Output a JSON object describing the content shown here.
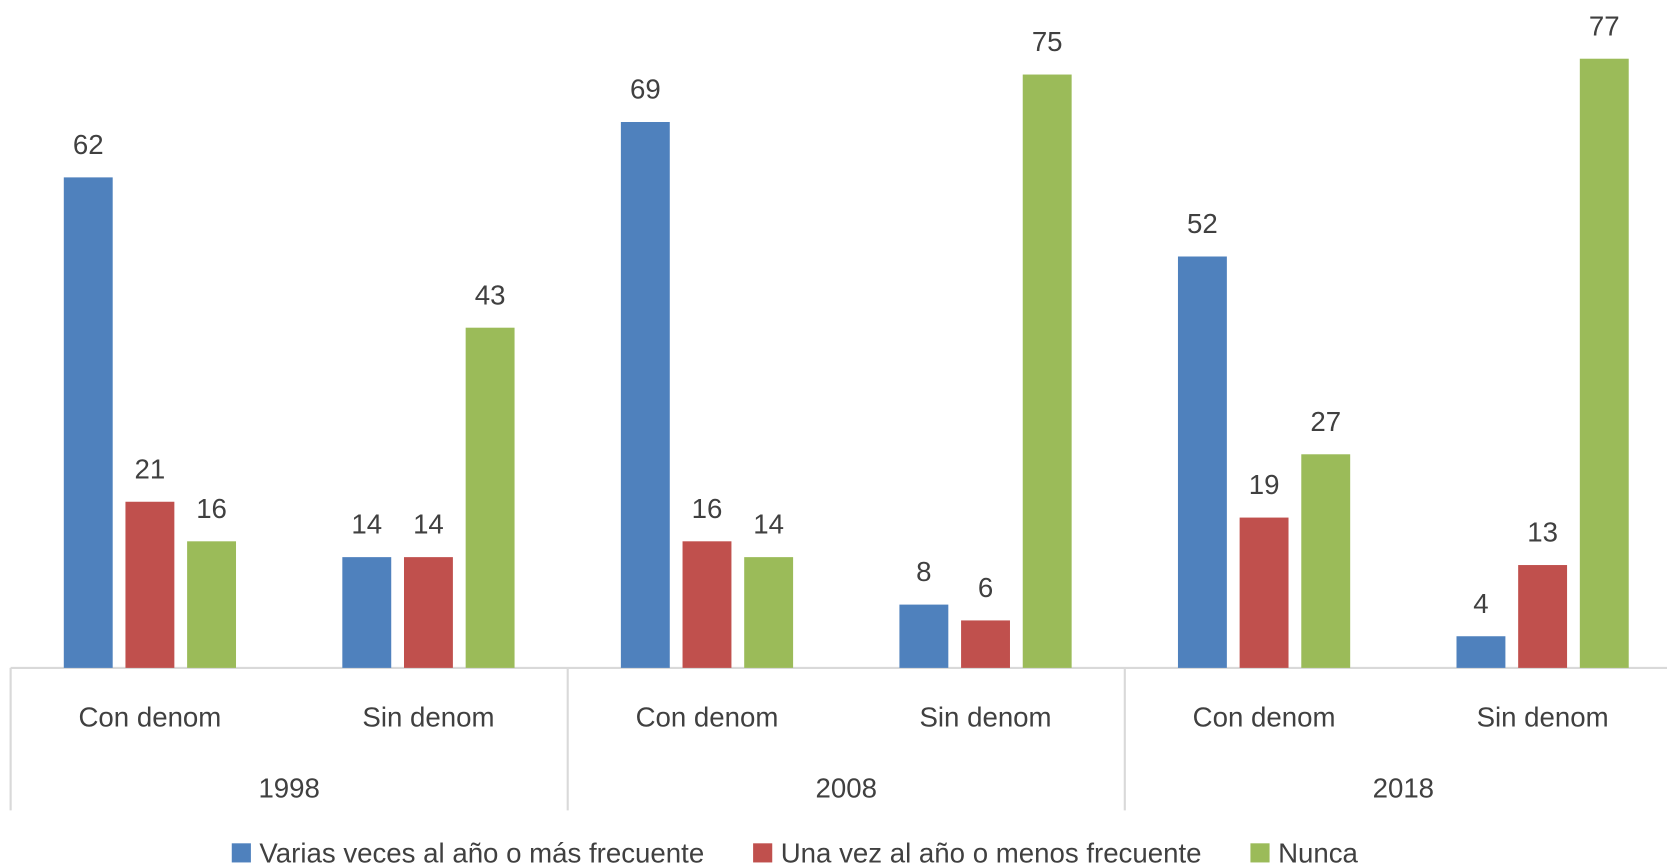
{
  "chart_data": {
    "type": "bar",
    "categories": [
      "Con denom",
      "Sin denom",
      "Con denom",
      "Sin denom",
      "Con denom",
      "Sin denom"
    ],
    "category_groups": [
      "1998",
      "2008",
      "2018"
    ],
    "series": [
      {
        "name": "Varias veces al año o más frecuente",
        "color": "#4f81bd",
        "values": [
          62,
          14,
          69,
          8,
          52,
          4
        ]
      },
      {
        "name": "Una vez al año o menos frecuente",
        "color": "#c0504d",
        "values": [
          21,
          14,
          16,
          6,
          19,
          13
        ]
      },
      {
        "name": "Nunca",
        "color": "#9bbb59",
        "values": [
          16,
          43,
          14,
          75,
          27,
          77
        ]
      }
    ],
    "legend": "bottom"
  }
}
